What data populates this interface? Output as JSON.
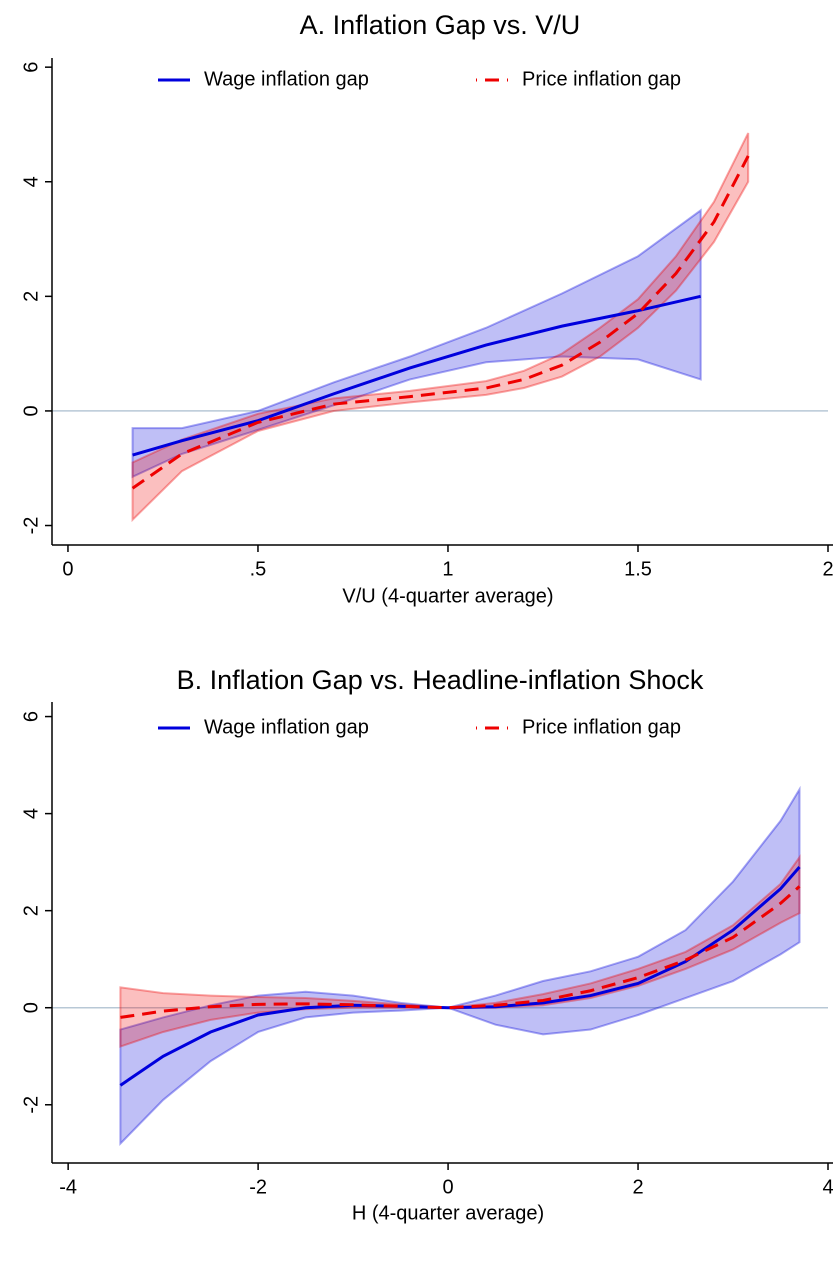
{
  "chart_data": [
    {
      "type": "line",
      "title": "A. Inflation Gap vs. V/U",
      "x_label": "V/U (4-quarter average)",
      "xlim": [
        -0.042,
        2.0
      ],
      "ylim": [
        -2.34,
        6.16
      ],
      "xticks": [
        0,
        {
          "value": 0.5,
          "label": ".5"
        },
        1,
        1.5,
        2
      ],
      "yticks": [
        -2,
        0,
        2,
        4,
        6
      ],
      "reference_line": 0,
      "legend": "top",
      "series": [
        {
          "name": "Wage inflation gap",
          "color": "#0000dd",
          "style": "solid",
          "x": [
            0.17,
            0.3,
            0.5,
            0.7,
            0.9,
            1.1,
            1.3,
            1.5,
            1.665
          ],
          "values": [
            -0.77,
            -0.52,
            -0.17,
            0.3,
            0.75,
            1.15,
            1.48,
            1.75,
            2.0
          ],
          "lower": [
            -1.15,
            -0.75,
            -0.33,
            0.1,
            0.55,
            0.85,
            0.95,
            0.9,
            0.55
          ],
          "upper": [
            -0.3,
            -0.3,
            0.0,
            0.5,
            0.95,
            1.45,
            2.05,
            2.7,
            3.5
          ]
        },
        {
          "name": "Price inflation gap",
          "color": "#ee0000",
          "style": "dashed",
          "x": [
            0.17,
            0.3,
            0.5,
            0.7,
            0.9,
            1.1,
            1.2,
            1.3,
            1.4,
            1.5,
            1.6,
            1.7,
            1.79
          ],
          "values": [
            -1.35,
            -0.75,
            -0.2,
            0.12,
            0.25,
            0.4,
            0.55,
            0.8,
            1.2,
            1.7,
            2.4,
            3.3,
            4.45
          ],
          "lower": [
            -1.9,
            -1.05,
            -0.35,
            0.0,
            0.15,
            0.28,
            0.4,
            0.6,
            0.95,
            1.45,
            2.1,
            2.95,
            4.0
          ],
          "upper": [
            -0.9,
            -0.5,
            -0.05,
            0.22,
            0.35,
            0.52,
            0.7,
            1.0,
            1.45,
            1.95,
            2.7,
            3.65,
            4.85
          ]
        }
      ]
    },
    {
      "type": "line",
      "title": "B. Inflation Gap vs. Headline-inflation Shock",
      "x_label": "H (4-quarter average)",
      "xlim": [
        -4.17,
        4.0
      ],
      "ylim": [
        -3.2,
        6.3
      ],
      "xticks": [
        -4,
        -2,
        0,
        2,
        4
      ],
      "yticks": [
        -2,
        0,
        2,
        4,
        6
      ],
      "reference_line": 0,
      "legend": "top",
      "series": [
        {
          "name": "Wage inflation gap",
          "color": "#0000dd",
          "style": "solid",
          "x": [
            -3.45,
            -3,
            -2.5,
            -2,
            -1.5,
            -1,
            -0.5,
            0,
            0.5,
            1,
            1.5,
            2,
            2.5,
            3,
            3.5,
            3.7
          ],
          "values": [
            -1.6,
            -1.0,
            -0.5,
            -0.15,
            0.0,
            0.05,
            0.03,
            0,
            0.02,
            0.1,
            0.25,
            0.5,
            0.95,
            1.6,
            2.45,
            2.9
          ],
          "lower": [
            -2.8,
            -1.9,
            -1.1,
            -0.5,
            -0.2,
            -0.1,
            -0.06,
            0,
            -0.35,
            -0.55,
            -0.45,
            -0.15,
            0.2,
            0.55,
            1.1,
            1.35
          ],
          "upper": [
            -0.45,
            -0.2,
            0.05,
            0.25,
            0.33,
            0.25,
            0.1,
            0,
            0.25,
            0.55,
            0.75,
            1.05,
            1.6,
            2.6,
            3.85,
            4.5
          ]
        },
        {
          "name": "Price inflation gap",
          "color": "#ee0000",
          "style": "dashed",
          "x": [
            -3.45,
            -3,
            -2.5,
            -2,
            -1.5,
            -1,
            -0.5,
            0,
            0.5,
            1,
            1.5,
            2,
            2.5,
            3,
            3.5,
            3.7
          ],
          "values": [
            -0.2,
            -0.07,
            0.02,
            0.07,
            0.08,
            0.06,
            0.03,
            0,
            0.05,
            0.15,
            0.35,
            0.62,
            0.98,
            1.45,
            2.15,
            2.5
          ],
          "lower": [
            -0.8,
            -0.5,
            -0.25,
            -0.1,
            -0.03,
            0.0,
            0.0,
            0,
            0.0,
            0.05,
            0.2,
            0.45,
            0.8,
            1.2,
            1.75,
            1.95
          ],
          "upper": [
            0.42,
            0.3,
            0.25,
            0.22,
            0.2,
            0.14,
            0.07,
            0,
            0.1,
            0.28,
            0.5,
            0.8,
            1.15,
            1.7,
            2.55,
            3.1
          ]
        }
      ]
    }
  ]
}
